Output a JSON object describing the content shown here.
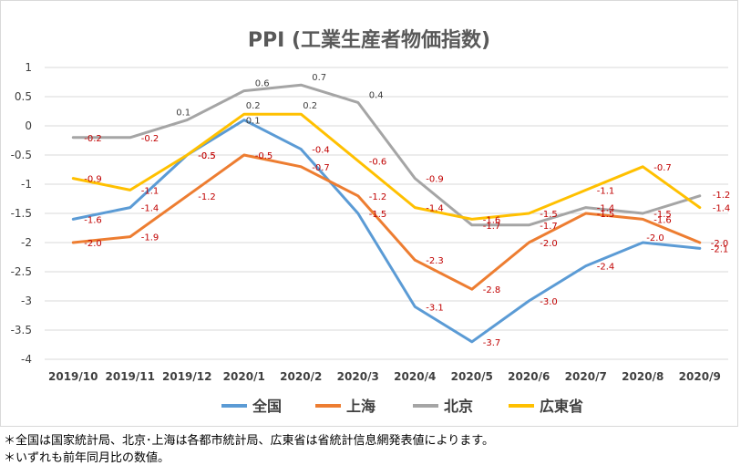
{
  "chart_data": {
    "type": "line",
    "title": "PPI (工業生産者物価指数)",
    "xlabel": "",
    "ylabel": "",
    "categories": [
      "2019/10",
      "2019/11",
      "2019/12",
      "2020/1",
      "2020/2",
      "2020/3",
      "2020/4",
      "2020/5",
      "2020/6",
      "2020/7",
      "2020/8",
      "2020/9"
    ],
    "ylim": [
      -4,
      1
    ],
    "yticks": [
      1,
      0.5,
      0,
      -0.5,
      -1,
      -1.5,
      -2,
      -2.5,
      -3,
      -3.5,
      -4
    ],
    "ytick_labels": [
      "1",
      "0.5",
      "0",
      "-0.5",
      "-1",
      "-1.5",
      "-2",
      "-2.5",
      "-3",
      "-3.5",
      "-4"
    ],
    "grid": true,
    "legend_position": "bottom",
    "series": [
      {
        "name": "全国",
        "color": "#5b9bd5",
        "values": [
          -1.6,
          -1.4,
          -0.5,
          0.1,
          -0.4,
          -1.5,
          -3.1,
          -3.7,
          -3.0,
          -2.4,
          -2.0,
          -2.1
        ],
        "labels": [
          "-1.6",
          "-1.4",
          "-0.5",
          "0.1",
          "-0.4",
          "-1.5",
          "-3.1",
          "-3.7",
          "-3.0",
          "-2.4",
          "-2.0",
          "-2.1"
        ]
      },
      {
        "name": "上海",
        "color": "#ed7d31",
        "values": [
          -2.0,
          -1.9,
          -1.2,
          -0.5,
          -0.7,
          -1.2,
          -2.3,
          -2.8,
          -2.0,
          -1.5,
          -1.6,
          -2.0
        ],
        "labels": [
          "-2.0",
          "-1.9",
          "-1.2",
          "-0.5",
          "-0.7",
          "-1.2",
          "-2.3",
          "-2.8",
          "-2.0",
          "-1.5",
          "-1.6",
          "-2.0"
        ]
      },
      {
        "name": "北京",
        "color": "#a5a5a5",
        "values": [
          -0.2,
          -0.2,
          0.1,
          0.6,
          0.7,
          0.4,
          -0.9,
          -1.7,
          -1.7,
          -1.4,
          -1.5,
          -1.2
        ],
        "labels": [
          "-0.2",
          "-0.2",
          "0.1",
          "0.6",
          "0.7",
          "0.4",
          "-0.9",
          "-1.7",
          "-1.7",
          "-1.4",
          "-1.5",
          "-1.2"
        ]
      },
      {
        "name": "広東省",
        "color": "#ffc000",
        "values": [
          -0.9,
          -1.1,
          -0.5,
          0.2,
          0.2,
          -0.6,
          -1.4,
          -1.6,
          -1.5,
          -1.1,
          -0.7,
          -1.4
        ],
        "labels": [
          "-0.9",
          "-1.1",
          "-0.5",
          "0.2",
          "0.2",
          "-0.6",
          "-1.4",
          "-1.6",
          "-1.5",
          "-1.1",
          "-0.7",
          "-1.4"
        ]
      }
    ],
    "label_colors": {
      "negative": "#c00000",
      "positive": "#404040"
    }
  },
  "notes": [
    "＊全国は国家統計局、北京･上海は各都市統計局、広東省は省統計信息網発表値によります。",
    "＊いずれも前年同月比の数値。"
  ]
}
